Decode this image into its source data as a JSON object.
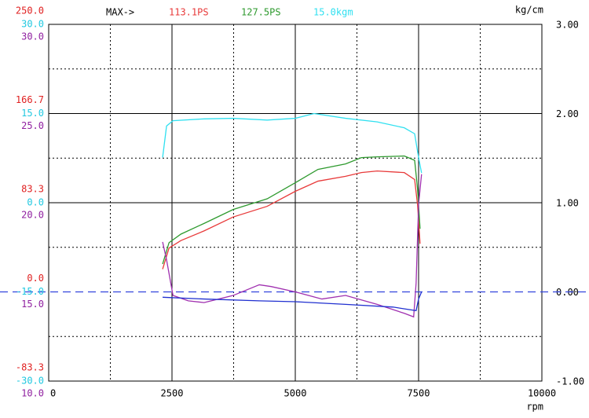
{
  "chart_data": {
    "type": "line",
    "header": "MAX->",
    "x_label": "rpm",
    "xlim": [
      0,
      10000
    ],
    "xticks": [
      0,
      2500,
      5000,
      7500,
      10000
    ],
    "xminor": [
      1250,
      3750,
      6250,
      8750
    ],
    "y_scales": [
      {
        "color": "#e02020",
        "lim": [
          -83.3,
          250
        ],
        "ticks": [
          {
            "value": 250,
            "label": "250.0"
          },
          166.7,
          83.3,
          {
            "value": 0,
            "label": "0.0"
          },
          -83.3
        ]
      },
      {
        "color": "#20c8e0",
        "lim": [
          -30,
          30
        ],
        "ticks": [
          {
            "value": 30,
            "label": "30.0"
          },
          {
            "value": 15,
            "label": "15.0"
          },
          {
            "value": 0,
            "label": "0.0"
          },
          {
            "value": -15,
            "label": "-15.0"
          },
          {
            "value": -30,
            "label": "-30.0"
          }
        ]
      },
      {
        "color": "#9020a0",
        "lim": [
          10,
          30
        ],
        "ticks": [
          {
            "value": 30,
            "label": "30.0"
          },
          {
            "value": 25,
            "label": "25.0"
          },
          {
            "value": 20,
            "label": "20.0"
          },
          {
            "value": 15,
            "label": "15.0"
          },
          {
            "value": 10,
            "label": "10.0"
          }
        ]
      }
    ],
    "y2_label": "kg/cm",
    "y2lim": [
      -1,
      3
    ],
    "y2ticks": [
      {
        "value": 3,
        "label": "3.00"
      },
      {
        "value": 2,
        "label": "2.00"
      },
      {
        "value": 1,
        "label": "1.00"
      },
      {
        "value": 0,
        "label": "0.00"
      },
      {
        "value": -1,
        "label": "-1.00"
      }
    ],
    "y2minor": [
      2.5,
      1.5,
      0.5,
      -0.5
    ],
    "reference_line": {
      "value": 0,
      "color": "#3344dd"
    },
    "series": [
      {
        "name": "113.1PS",
        "color": "#e83a3a",
        "scale": 0,
        "x": [
          2310,
          2440,
          2680,
          3150,
          3740,
          4430,
          5000,
          5460,
          6020,
          6340,
          6660,
          7210,
          7420,
          7480,
          7530
        ],
        "values": [
          21.3,
          41,
          48,
          57,
          70,
          80,
          94,
          103.5,
          108,
          111.5,
          113,
          111.5,
          105,
          81,
          45
        ]
      },
      {
        "name": "127.5PS",
        "color": "#2e9a2e",
        "scale": 0,
        "x": [
          2310,
          2440,
          2680,
          3150,
          3740,
          4430,
          5000,
          5460,
          6020,
          6340,
          6660,
          7210,
          7420,
          7480,
          7530
        ],
        "values": [
          26,
          46,
          54,
          64,
          77,
          87,
          102,
          114.5,
          119.6,
          125.5,
          126.2,
          127,
          123,
          96,
          59
        ]
      },
      {
        "name": "15.0kgm",
        "color": "#30e0f0",
        "scale": 1,
        "x": [
          2310,
          2390,
          2520,
          3150,
          3740,
          4430,
          5000,
          5380,
          6020,
          6660,
          7210,
          7420,
          7500,
          7560
        ],
        "values": [
          7.6,
          12.9,
          13.8,
          14.1,
          14.2,
          13.9,
          14.2,
          15.0,
          14.2,
          13.6,
          12.6,
          11.6,
          7.6,
          5.0
        ]
      },
      {
        "color": "#a030b0",
        "scale": 2,
        "x": [
          2310,
          2390,
          2520,
          2830,
          3150,
          3740,
          4270,
          4510,
          5000,
          5540,
          6020,
          6660,
          7210,
          7400,
          7450,
          7500,
          7560
        ],
        "values": [
          17.8,
          16.8,
          14.8,
          14.5,
          14.4,
          14.8,
          15.4,
          15.3,
          15.0,
          14.6,
          14.8,
          14.3,
          13.8,
          13.6,
          15.5,
          19.9,
          21.6
        ]
      },
      {
        "color": "#2030d0",
        "axis": "y2",
        "x": [
          2310,
          3150,
          4270,
          5000,
          6020,
          6980,
          7450,
          7500,
          7560
        ],
        "values": [
          -0.06,
          -0.08,
          -0.1,
          -0.11,
          -0.14,
          -0.17,
          -0.21,
          -0.08,
          0
        ]
      }
    ]
  }
}
